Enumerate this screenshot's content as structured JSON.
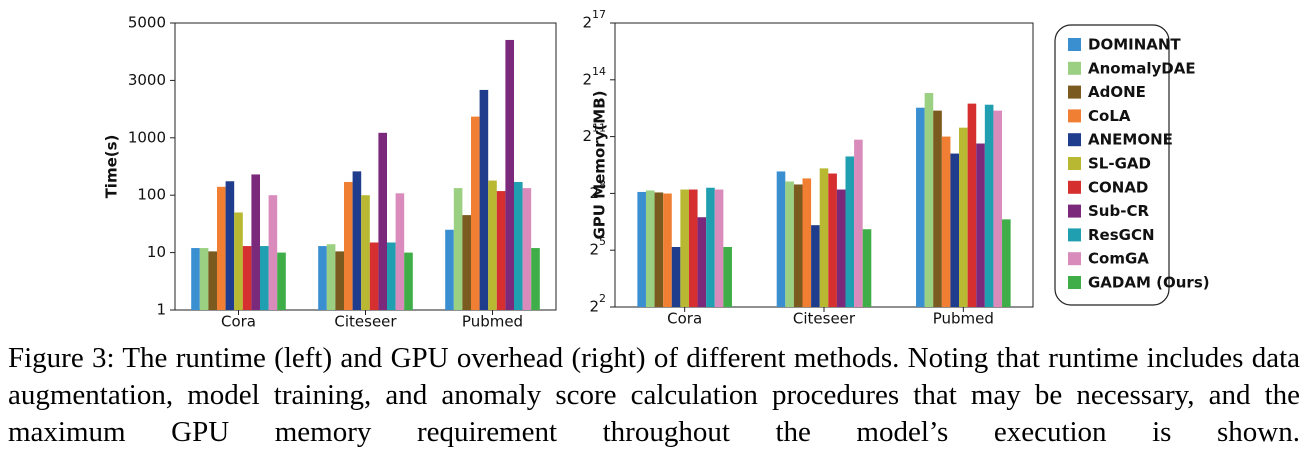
{
  "chart_data": [
    {
      "type": "bar",
      "y_label": "Time(s)",
      "categories": [
        "Cora",
        "Citeseer",
        "Pubmed"
      ],
      "yscale": "segmented-log",
      "ylim": [
        1,
        5000
      ],
      "yticks": [
        1,
        10,
        100,
        1000,
        3000,
        5000
      ],
      "series": [
        {
          "values": [
            12,
            13,
            25
          ]
        },
        {
          "values": [
            12,
            14,
            133
          ]
        },
        {
          "values": [
            10.5,
            10.5,
            45
          ]
        },
        {
          "values": [
            140,
            170,
            1500
          ]
        },
        {
          "values": [
            175,
            260,
            2500
          ]
        },
        {
          "values": [
            50,
            100,
            180
          ]
        },
        {
          "values": [
            13,
            15,
            118
          ]
        },
        {
          "values": [
            230,
            1100,
            4300
          ]
        },
        {
          "values": [
            13,
            15,
            170
          ]
        },
        {
          "values": [
            100,
            108,
            133
          ]
        },
        {
          "values": [
            10,
            10,
            12
          ]
        }
      ]
    },
    {
      "type": "bar",
      "y_label": "GPU Memory(MB)",
      "categories": [
        "Cora",
        "Citeseer",
        "Pubmed"
      ],
      "yscale": "log",
      "ylim": [
        4,
        131072
      ],
      "yticks": [
        {
          "value": 4,
          "label": "2^2"
        },
        {
          "value": 32,
          "label": "2^5"
        },
        {
          "value": 256,
          "label": "2^8"
        },
        {
          "value": 2048,
          "label": "2^11"
        },
        {
          "value": 16384,
          "label": "2^14"
        },
        {
          "value": 131072,
          "label": "2^17"
        }
      ],
      "series": [
        {
          "values": [
            270,
            572,
            5900
          ]
        },
        {
          "values": [
            285,
            396,
            10100
          ]
        },
        {
          "values": [
            265,
            355,
            5300
          ]
        },
        {
          "values": [
            255,
            443,
            2050
          ]
        },
        {
          "values": [
            36,
            80,
            1100
          ]
        },
        {
          "values": [
            295,
            640,
            2840
          ]
        },
        {
          "values": [
            295,
            530,
            6850
          ]
        },
        {
          "values": [
            107,
            295,
            1590
          ]
        },
        {
          "values": [
            315,
            990,
            6580
          ]
        },
        {
          "values": [
            295,
            1830,
            5300
          ]
        },
        {
          "values": [
            36,
            69,
            99
          ]
        }
      ]
    }
  ],
  "legend": {
    "entries": [
      {
        "name": "DOMINANT",
        "color": "#3a8fd1"
      },
      {
        "name": "AnomalyDAE",
        "color": "#9bcf82"
      },
      {
        "name": "AdONE",
        "color": "#7a5a1e"
      },
      {
        "name": "CoLA",
        "color": "#f07f33"
      },
      {
        "name": "ANEMONE",
        "color": "#1f3d8c"
      },
      {
        "name": "SL-GAD",
        "color": "#b8b833"
      },
      {
        "name": "CONAD",
        "color": "#d62f2f"
      },
      {
        "name": "Sub-CR",
        "color": "#7b2a7b"
      },
      {
        "name": "ResGCN",
        "color": "#1f9fb0"
      },
      {
        "name": "ComGA",
        "color": "#d98bbb"
      },
      {
        "name": "GADAM (Ours)",
        "color": "#3fae49"
      }
    ]
  },
  "caption": "Figure 3: The runtime (left) and GPU overhead (right) of different methods. Noting that runtime includes data augmentation, model training, and anomaly score calculation procedures that may be necessary, and the maximum GPU memory requirement throughout the model’s execution is shown."
}
